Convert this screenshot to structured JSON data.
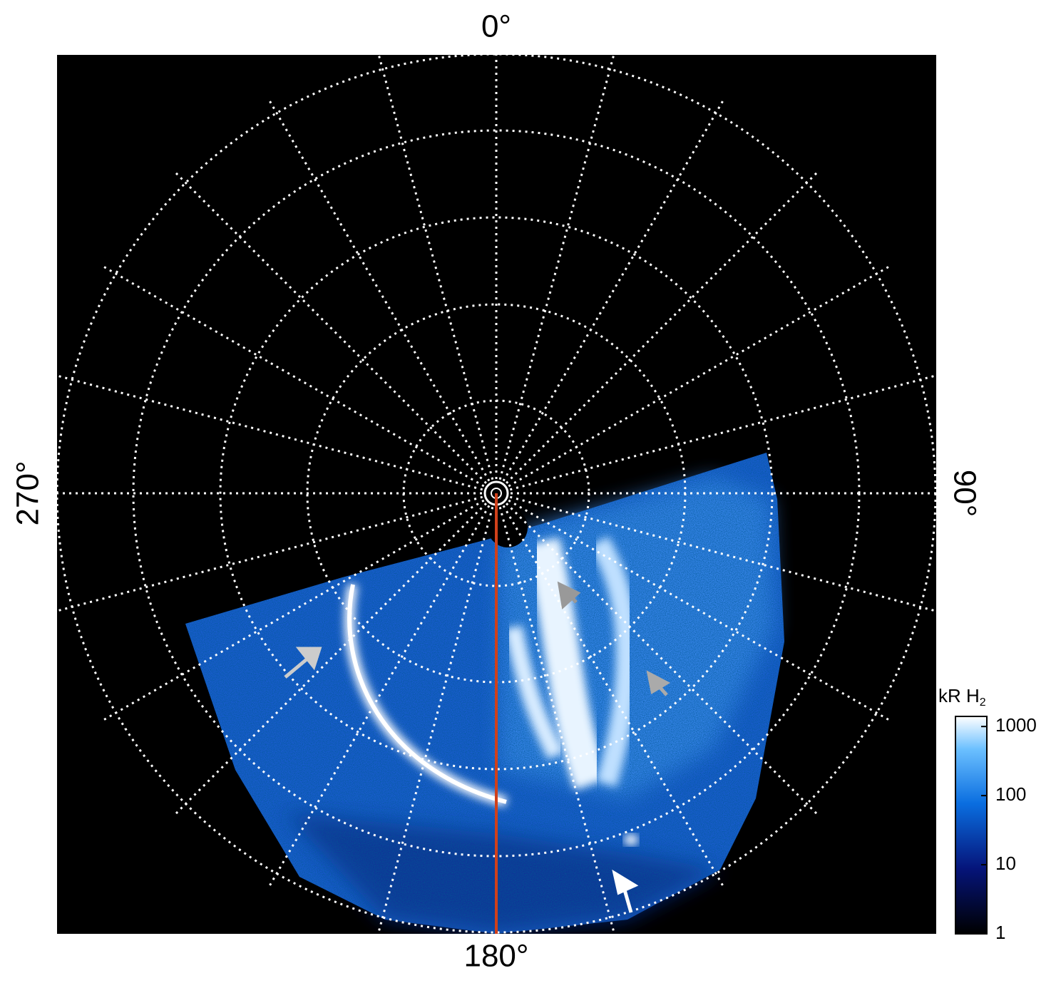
{
  "chart_data": {
    "type": "polar-image",
    "angle_labels": [
      {
        "value": 0,
        "label": "0°"
      },
      {
        "value": 90,
        "label": "90°"
      },
      {
        "value": 180,
        "label": "180°"
      },
      {
        "value": 270,
        "label": "270°"
      }
    ],
    "colorbar": {
      "title": "kR H",
      "title_subscript": "2",
      "log": true,
      "lim": [
        1,
        1400
      ],
      "ticks": [
        1,
        10,
        100,
        1000
      ]
    }
  }
}
